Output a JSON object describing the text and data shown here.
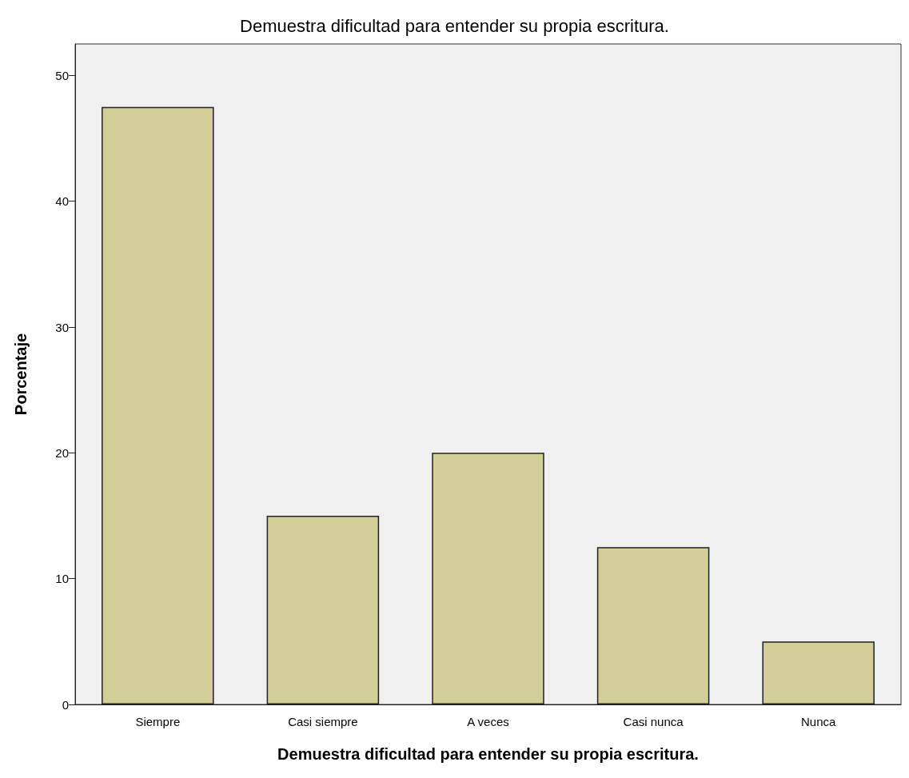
{
  "chart_data": {
    "type": "bar",
    "title": "Demuestra dificultad para entender su propia escritura.",
    "xlabel": "Demuestra dificultad para entender su propia escritura.",
    "ylabel": "Porcentaje",
    "categories": [
      "Siempre",
      "Casi siempre",
      "A veces",
      "Casi nunca",
      "Nunca"
    ],
    "values": [
      47.5,
      15.0,
      20.0,
      12.5,
      5.0
    ],
    "color": "#d3ce97",
    "ylim": [
      0,
      52.5
    ],
    "yticks": [
      0,
      10,
      20,
      30,
      40,
      50
    ],
    "grid": false
  }
}
